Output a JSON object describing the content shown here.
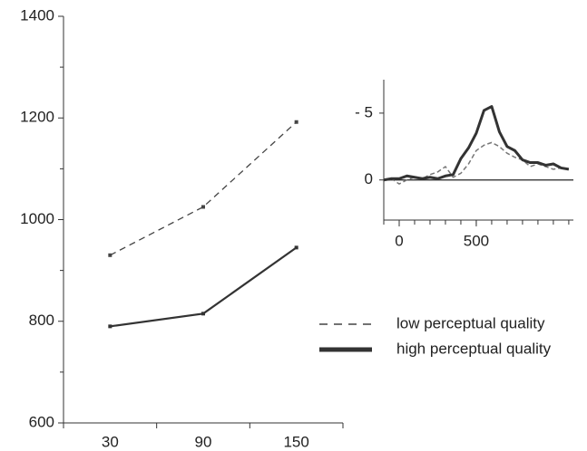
{
  "chart_data": [
    {
      "type": "line",
      "categories": [
        "30",
        "90",
        "150"
      ],
      "series": [
        {
          "name": "low perceptual quality",
          "color": "#444444",
          "dash": true,
          "values": [
            930,
            1025,
            1192
          ]
        },
        {
          "name": "high perceptual quality",
          "color": "#333333",
          "dash": false,
          "values": [
            790,
            815,
            945
          ]
        }
      ],
      "ylim": [
        600,
        1400
      ],
      "yticks": [
        600,
        800,
        1000,
        1200,
        1400
      ],
      "legend": "right"
    },
    {
      "type": "line",
      "x": [
        -100,
        -50,
        0,
        50,
        100,
        150,
        200,
        250,
        300,
        350,
        400,
        450,
        500,
        550,
        600,
        650,
        700,
        750,
        800,
        850,
        900,
        950,
        1000,
        1050,
        1100
      ],
      "series": [
        {
          "color": "#777777",
          "dash": true,
          "values": [
            0,
            0.1,
            -0.3,
            0,
            0.2,
            0.1,
            0.4,
            0.6,
            1.0,
            0.2,
            0.5,
            1.2,
            2.2,
            2.6,
            2.8,
            2.5,
            2.0,
            1.7,
            1.5,
            1.0,
            1.2,
            1.0,
            0.8,
            0.9,
            0.8
          ]
        },
        {
          "color": "#333333",
          "dash": false,
          "values": [
            0,
            0.1,
            0.1,
            0.3,
            0.2,
            0.1,
            0.2,
            0.1,
            0.3,
            0.4,
            1.6,
            2.4,
            3.5,
            5.2,
            5.5,
            3.6,
            2.5,
            2.2,
            1.5,
            1.3,
            1.3,
            1.1,
            1.2,
            0.9,
            0.8
          ]
        }
      ],
      "xlim": [
        -100,
        1130
      ],
      "xticks": [
        0,
        500
      ],
      "ylim": [
        -3,
        7.5
      ],
      "yticks": [
        0,
        {
          "value": 5,
          "label": "- 5"
        }
      ]
    }
  ]
}
